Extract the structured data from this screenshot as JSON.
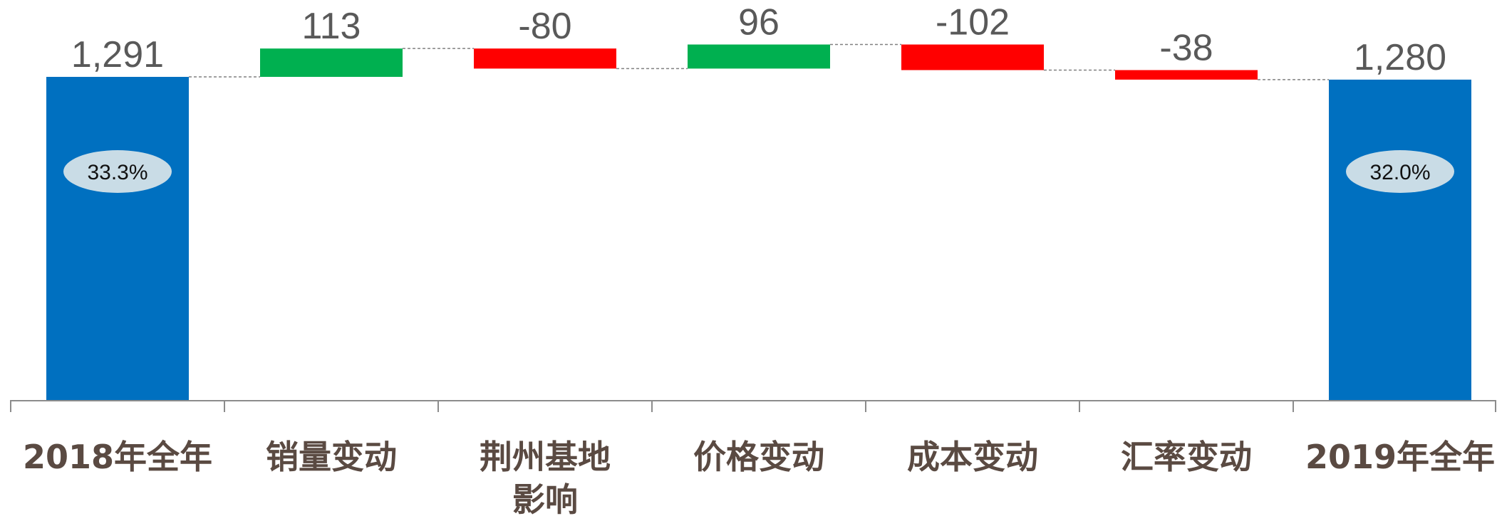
{
  "chart_data": {
    "type": "bar",
    "subtype": "waterfall",
    "categories": [
      [
        "2018年全年"
      ],
      [
        "销量变动"
      ],
      [
        "荆州基地",
        "影响"
      ],
      [
        "价格变动"
      ],
      [
        "成本变动"
      ],
      [
        "汇率变动"
      ],
      [
        "2019年全年"
      ]
    ],
    "kinds": [
      "total",
      "delta",
      "delta",
      "delta",
      "delta",
      "delta",
      "total"
    ],
    "values": [
      1291,
      113,
      -80,
      96,
      -102,
      -38,
      1280
    ],
    "value_labels": [
      "1,291",
      "113",
      "-80",
      "96",
      "-102",
      "-38",
      "1,280"
    ],
    "percent_labels": [
      "33.3%",
      "",
      "",
      "",
      "",
      "",
      "32.0%"
    ],
    "ylim": [
      0,
      1400
    ],
    "grid": false,
    "legend": "none",
    "colors": {
      "total": "#0070C0",
      "increase": "#00B050",
      "decrease": "#FF0000",
      "percent_ellipse": "#C9DCE6",
      "axis": "#8c8c8c",
      "connector": "#808080"
    }
  }
}
